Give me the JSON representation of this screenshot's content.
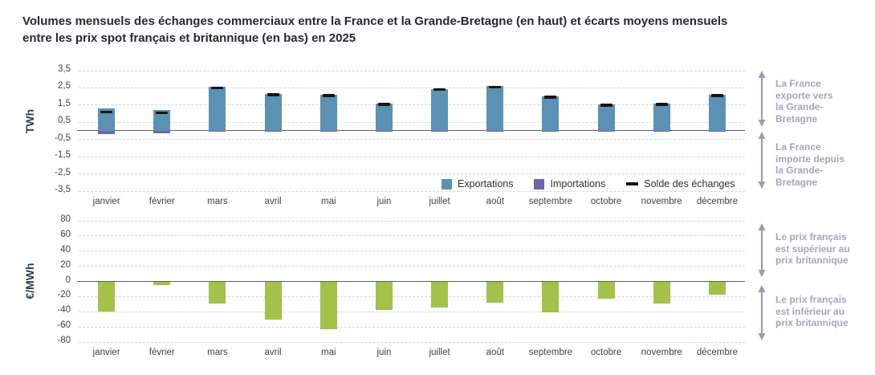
{
  "title": {
    "line1": "Volumes mensuels des échanges commerciaux entre la France et la Grande-Bretagne (en haut) et écarts moyens mensuels",
    "line2": "entre les prix spot français et britannique (en bas) en 2025"
  },
  "colors": {
    "export": "#5b92b4",
    "import": "#6f65ad",
    "solde": "#151515",
    "price_gap": "#a4c24a",
    "grid": "#d7d7d7",
    "zero_line": "#5e5e5e",
    "annotation_text": "#a8a4bd",
    "arrow": "#9e99b6",
    "title_text": "#212a36",
    "axis_text": "#414141"
  },
  "legend": {
    "exportations": "Exportations",
    "importations": "Importations",
    "solde": "Solde des échanges"
  },
  "annotations": [
    {
      "text": "La France\nexporte vers\nla Grande-\nBretagne"
    },
    {
      "text": "La France\nimporte depuis\nla Grande-\nBretagne"
    },
    {
      "text": "Le prix français\nest supérieur au\nprix britannique"
    },
    {
      "text": "Le prix français\nest inférieur au\nprix britannique"
    }
  ],
  "chart_data": [
    {
      "type": "bar",
      "title": "Volumes mensuels des échanges commerciaux France / Grande-Bretagne",
      "ylabel": "TWh",
      "xlabel": "",
      "categories": [
        "janvier",
        "février",
        "mars",
        "avril",
        "mai",
        "juin",
        "juillet",
        "août",
        "septembre",
        "octobre",
        "novembre",
        "décembre"
      ],
      "series": [
        {
          "name": "Exportations",
          "values": [
            1.3,
            1.2,
            2.55,
            2.15,
            2.1,
            1.6,
            2.45,
            2.6,
            2.0,
            1.55,
            1.6,
            2.1
          ]
        },
        {
          "name": "Importations",
          "values": [
            -0.2,
            -0.15,
            -0.03,
            -0.03,
            -0.03,
            -0.05,
            -0.05,
            -0.03,
            -0.05,
            -0.03,
            -0.05,
            -0.03
          ]
        },
        {
          "name": "Solde des échanges",
          "values": [
            1.1,
            1.05,
            2.5,
            2.1,
            2.05,
            1.55,
            2.4,
            2.55,
            1.95,
            1.5,
            1.55,
            2.05
          ]
        }
      ],
      "ylim": [
        -3.5,
        3.5
      ],
      "yticks": [
        {
          "value": 3.5,
          "label": "3,5"
        },
        {
          "value": 2.5,
          "label": "2,5"
        },
        {
          "value": 1.5,
          "label": "1,5"
        },
        {
          "value": 0.5,
          "label": "0,5"
        },
        {
          "value": -0.5,
          "label": "-0,5"
        },
        {
          "value": -1.5,
          "label": "-1,5"
        },
        {
          "value": -2.5,
          "label": "-2,5"
        },
        {
          "value": -3.5,
          "label": "-3,5"
        }
      ],
      "grid": true,
      "legend_position": "inside-bottom-right"
    },
    {
      "type": "bar",
      "title": "Écarts moyens mensuels entre les prix spot français et britannique",
      "ylabel": "€/MWh",
      "xlabel": "",
      "categories": [
        "janvier",
        "février",
        "mars",
        "avril",
        "mai",
        "juin",
        "juillet",
        "août",
        "septembre",
        "octobre",
        "novembre",
        "décembre"
      ],
      "values": [
        -40,
        -5,
        -29,
        -50,
        -63,
        -38,
        -34,
        -28,
        -41,
        -23,
        -29,
        -17
      ],
      "ylim": [
        -80,
        80
      ],
      "yticks": [
        {
          "value": 80,
          "label": "80"
        },
        {
          "value": 60,
          "label": "60"
        },
        {
          "value": 40,
          "label": "40"
        },
        {
          "value": 20,
          "label": "20"
        },
        {
          "value": 0,
          "label": "0"
        },
        {
          "value": -20,
          "label": "-20"
        },
        {
          "value": -40,
          "label": "-40"
        },
        {
          "value": -60,
          "label": "-60"
        },
        {
          "value": -80,
          "label": "-80"
        }
      ],
      "grid": true
    }
  ]
}
